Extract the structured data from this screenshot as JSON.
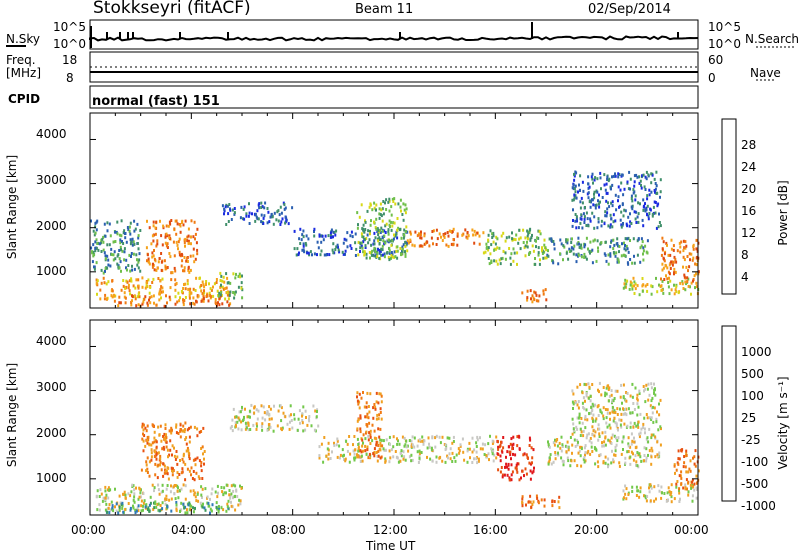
{
  "header": {
    "station": "Stokkseyri (fitACF)",
    "beam": "Beam 11",
    "date": "02/Sep/2014"
  },
  "panels": {
    "nsky": {
      "left_label": "N.Sky",
      "right_label": "N.Search",
      "top_tick": "10^5",
      "bottom_tick": "10^0"
    },
    "freq": {
      "left_label_1": "Freq.",
      "left_label_2": "[MHz]",
      "left_ticks": [
        "18",
        "8"
      ],
      "right_label": "Nave",
      "right_ticks": [
        "60",
        "0"
      ]
    },
    "cpid": {
      "label": "CPID",
      "mode": "normal (fast) 151"
    }
  },
  "colors": {
    "power": [
      "#1a2be0",
      "#2a5fb0",
      "#3f8f6a",
      "#6fbf4a",
      "#d8d818",
      "#f5a21a",
      "#f07a12",
      "#e04a10",
      "#e0161a"
    ],
    "velocity": [
      "#2040c8",
      "#2f7ab8",
      "#3c9a5a",
      "#72c84a",
      "#c8c8c4",
      "#f0a020",
      "#f07a12",
      "#e85010",
      "#e0161a"
    ]
  },
  "chart_data": [
    {
      "type": "heatmap",
      "title": "Power",
      "ylabel": "Slant Range [km]",
      "xlabel": "",
      "x_ticks": [
        "00:00",
        "04:00",
        "08:00",
        "12:00",
        "16:00",
        "20:00",
        "00:00"
      ],
      "y_ticks": [
        "1000",
        "2000",
        "3000",
        "4000"
      ],
      "ylim": [
        180,
        4600
      ],
      "xlim_hours": [
        0,
        24
      ],
      "colorbar": {
        "label": "Power [dB]",
        "ticks": [
          "4",
          "8",
          "12",
          "16",
          "20",
          "24",
          "28"
        ]
      },
      "echo_regions": [
        {
          "t": [
            0.2,
            5.5
          ],
          "r": [
            400,
            900
          ],
          "level": 5
        },
        {
          "t": [
            0.5,
            5.5
          ],
          "r": [
            250,
            500
          ],
          "level": 6
        },
        {
          "t": [
            0.0,
            2.0
          ],
          "r": [
            1000,
            2200
          ],
          "level": 2
        },
        {
          "t": [
            2.2,
            4.2
          ],
          "r": [
            1000,
            2200
          ],
          "level": 6
        },
        {
          "t": [
            5.0,
            6.0
          ],
          "r": [
            400,
            1000
          ],
          "level": 3
        },
        {
          "t": [
            5.2,
            8.0
          ],
          "r": [
            2100,
            2600
          ],
          "level": 1
        },
        {
          "t": [
            8.0,
            12.5
          ],
          "r": [
            1400,
            2000
          ],
          "level": 1
        },
        {
          "t": [
            10.5,
            12.5
          ],
          "r": [
            1300,
            2700
          ],
          "level": 3
        },
        {
          "t": [
            12.5,
            15.5
          ],
          "r": [
            1600,
            2000
          ],
          "level": 6
        },
        {
          "t": [
            15.5,
            18.0
          ],
          "r": [
            1200,
            2000
          ],
          "level": 3
        },
        {
          "t": [
            17.0,
            18.0
          ],
          "r": [
            350,
            650
          ],
          "level": 6
        },
        {
          "t": [
            18.0,
            22.0
          ],
          "r": [
            1200,
            1800
          ],
          "level": 2
        },
        {
          "t": [
            19.0,
            22.5
          ],
          "r": [
            2000,
            3300
          ],
          "level": 1
        },
        {
          "t": [
            21.0,
            24.0
          ],
          "r": [
            500,
            900
          ],
          "level": 4
        },
        {
          "t": [
            22.5,
            24.0
          ],
          "r": [
            800,
            1800
          ],
          "level": 6
        }
      ]
    },
    {
      "type": "heatmap",
      "title": "Velocity",
      "ylabel": "Slant Range [km]",
      "xlabel": "Time UT",
      "x_ticks": [
        "00:00",
        "04:00",
        "08:00",
        "12:00",
        "16:00",
        "20:00",
        "00:00"
      ],
      "y_ticks": [
        "1000",
        "2000",
        "3000",
        "4000"
      ],
      "ylim": [
        180,
        4600
      ],
      "xlim_hours": [
        0,
        24
      ],
      "colorbar": {
        "label": "Velocity [m s⁻¹]",
        "ticks": [
          "1000",
          "500",
          "100",
          "25",
          "-25",
          "-100",
          "-500",
          "-1000"
        ]
      },
      "echo_regions": [
        {
          "t": [
            0.2,
            6.0
          ],
          "r": [
            300,
            900
          ],
          "level": 4
        },
        {
          "t": [
            0.5,
            5.5
          ],
          "r": [
            250,
            500
          ],
          "level": 2
        },
        {
          "t": [
            2.0,
            4.5
          ],
          "r": [
            1000,
            2300
          ],
          "level": 6
        },
        {
          "t": [
            5.5,
            9.0
          ],
          "r": [
            2100,
            2700
          ],
          "level": 4
        },
        {
          "t": [
            9.0,
            16.0
          ],
          "r": [
            1400,
            2000
          ],
          "level": 4
        },
        {
          "t": [
            10.5,
            11.5
          ],
          "r": [
            1500,
            3000
          ],
          "level": 6
        },
        {
          "t": [
            16.0,
            17.5
          ],
          "r": [
            1000,
            2000
          ],
          "level": 8
        },
        {
          "t": [
            17.0,
            18.5
          ],
          "r": [
            350,
            650
          ],
          "level": 6
        },
        {
          "t": [
            18.0,
            22.5
          ],
          "r": [
            1300,
            2000
          ],
          "level": 4
        },
        {
          "t": [
            19.0,
            22.5
          ],
          "r": [
            2000,
            3200
          ],
          "level": 4
        },
        {
          "t": [
            21.0,
            24.0
          ],
          "r": [
            500,
            900
          ],
          "level": 4
        },
        {
          "t": [
            23.0,
            24.0
          ],
          "r": [
            800,
            1700
          ],
          "level": 6
        }
      ]
    }
  ]
}
